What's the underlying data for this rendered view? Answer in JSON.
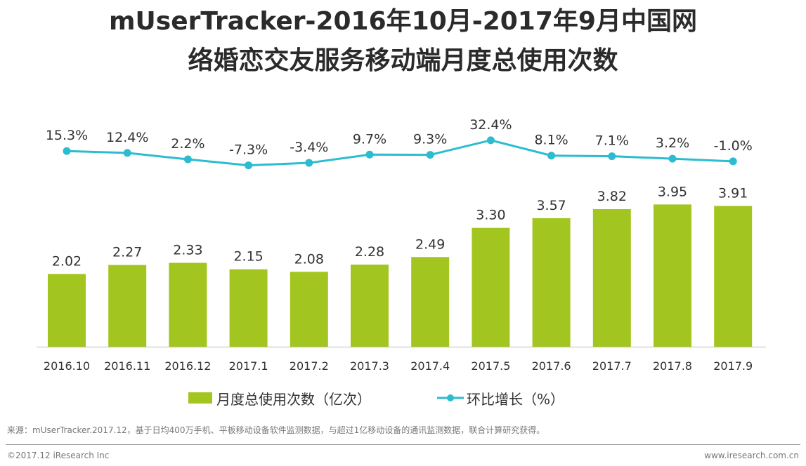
{
  "title": {
    "line1": "mUserTracker-2016年10月-2017年9月中国网",
    "line2": "络婚恋交友服务移动端月度总使用次数"
  },
  "chart_data": {
    "type": "bar+line",
    "categories": [
      "2016.10",
      "2016.11",
      "2016.12",
      "2017.1",
      "2017.2",
      "2017.3",
      "2017.4",
      "2017.5",
      "2017.6",
      "2017.7",
      "2017.8",
      "2017.9"
    ],
    "series": [
      {
        "name": "月度总使用次数（亿次）",
        "type": "bar",
        "values": [
          2.02,
          2.27,
          2.33,
          2.15,
          2.08,
          2.28,
          2.49,
          3.3,
          3.57,
          3.82,
          3.95,
          3.91
        ],
        "labels": [
          "2.02",
          "2.27",
          "2.33",
          "2.15",
          "2.08",
          "2.28",
          "2.49",
          "3.30",
          "3.57",
          "3.82",
          "3.95",
          "3.91"
        ]
      },
      {
        "name": "环比增长（%）",
        "type": "line",
        "values": [
          15.3,
          12.4,
          2.2,
          -7.3,
          -3.4,
          9.7,
          9.3,
          32.4,
          8.1,
          7.1,
          3.2,
          -1.0
        ],
        "labels": [
          "15.3%",
          "12.4%",
          "2.2%",
          "-7.3%",
          "-3.4%",
          "9.7%",
          "9.3%",
          "32.4%",
          "8.1%",
          "7.1%",
          "3.2%",
          "-1.0%"
        ]
      }
    ],
    "colors": {
      "bar": "#a3c51f",
      "line": "#2bbcd0",
      "axis": "#bbbbbb"
    }
  },
  "legend": {
    "bar_label": "月度总使用次数（亿次）",
    "line_label": "环比增长（%）"
  },
  "footnote": "来源：mUserTracker.2017.12，基于日均400万手机、平板移动设备软件监测数据，与超过1亿移动设备的通讯监测数据，联合计算研究获得。",
  "footer": {
    "left": "©2017.12 iResearch Inc",
    "right": "www.iresearch.com.cn"
  }
}
